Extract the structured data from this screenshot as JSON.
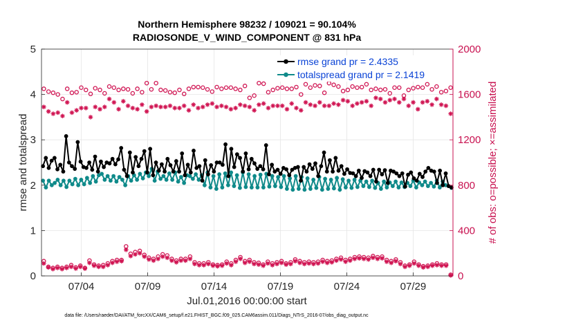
{
  "chart_data": {
    "type": "line",
    "title_line1": "Northern Hemisphere 98232 / 109021 = 90.104%",
    "title_line2": "RADIOSONDE_V_WIND_COMPONENT @ 831 hPa",
    "xlabel": "Jul.01,2016 00:00:00 start",
    "ylabel_left": "rmse and totalspread",
    "ylabel_right": "# of obs: o=possible; ×=assimilated",
    "footnote": "data file: /Users/raeder/DAI/ATM_forcXX/CAM6_setup/f.e21.FHIST_BGC.f09_025.CAM6assim.011/Diags_NTrS_2016-07/obs_diag_output.nc",
    "x_range_days": [
      1.0,
      32.0
    ],
    "x_ticks": [
      {
        "day": 4,
        "label": "07/04"
      },
      {
        "day": 9,
        "label": "07/09"
      },
      {
        "day": 14,
        "label": "07/14"
      },
      {
        "day": 19,
        "label": "07/19"
      },
      {
        "day": 24,
        "label": "07/24"
      },
      {
        "day": 29,
        "label": "07/29"
      }
    ],
    "ylim_left": [
      0,
      5
    ],
    "yticks_left": [
      "0",
      "1",
      "2",
      "3",
      "4",
      "5"
    ],
    "ylim_right": [
      0,
      2000
    ],
    "yticks_right": [
      "0",
      "400",
      "800",
      "1200",
      "1600",
      "2000"
    ],
    "legend": {
      "position": "top-right",
      "entries": [
        "rmse grand pr = 2.4335",
        "totalspread grand pr = 2.1419"
      ]
    },
    "colors": {
      "rmse": "#000000",
      "spread": "#0f8a8a",
      "obs": "#d01452"
    },
    "series": [
      {
        "name": "rmse",
        "values": [
          2.42,
          2.6,
          2.38,
          2.54,
          2.6,
          2.35,
          2.45,
          2.3,
          3.08,
          2.5,
          2.42,
          2.36,
          2.95,
          2.52,
          2.4,
          2.38,
          2.5,
          2.34,
          2.63,
          2.3,
          2.52,
          2.4,
          2.5,
          2.48,
          2.58,
          2.46,
          2.57,
          2.82,
          2.34,
          2.2,
          2.72,
          2.28,
          2.62,
          2.42,
          2.58,
          2.75,
          2.28,
          2.8,
          2.22,
          2.5,
          2.32,
          2.46,
          2.3,
          2.58,
          2.44,
          2.3,
          2.53,
          2.3,
          2.7,
          2.22,
          2.45,
          2.28,
          2.76,
          2.38,
          2.42,
          2.1,
          2.55,
          2.24,
          2.44,
          2.3,
          2.5,
          2.5,
          2.45,
          2.9,
          2.2,
          2.8,
          2.4,
          2.68,
          2.6,
          2.3,
          2.7,
          2.35,
          2.58,
          2.48,
          2.36,
          2.42,
          2.35,
          2.88,
          2.24,
          2.45,
          2.3,
          2.34,
          2.25,
          2.38,
          2.35,
          2.22,
          2.34,
          2.38,
          2.4,
          2.1,
          2.4,
          2.3,
          2.46,
          2.36,
          2.48,
          2.2,
          2.42,
          2.72,
          2.3,
          2.55,
          2.3,
          2.6,
          2.32,
          2.42,
          2.25,
          2.35,
          2.27,
          2.26,
          2.2,
          2.32,
          2.16,
          2.31,
          2.28,
          2.2,
          2.34,
          2.08,
          2.34,
          2.24,
          2.33,
          2.05,
          2.32,
          2.3,
          2.26,
          2.2,
          2.26,
          1.97,
          2.23,
          2.28,
          2.15,
          2.1,
          2.25,
          2.18,
          2.3,
          2.38,
          2.32,
          2.3,
          2.05,
          2.32,
          2.0,
          2.26,
          1.98,
          1.95
        ]
      },
      {
        "name": "totalspread",
        "values": [
          2.1,
          1.95,
          2.1,
          2.0,
          2.05,
          2.12,
          2.0,
          2.1,
          1.96,
          2.1,
          2.02,
          2.14,
          2.0,
          2.12,
          2.02,
          2.16,
          2.05,
          2.2,
          2.08,
          2.22,
          2.25,
          2.12,
          2.2,
          2.1,
          2.2,
          2.08,
          2.18,
          2.12,
          2.0,
          2.2,
          2.1,
          2.22,
          2.12,
          2.25,
          2.15,
          2.28,
          2.2,
          2.36,
          2.1,
          2.3,
          2.14,
          2.2,
          2.12,
          2.26,
          2.12,
          2.28,
          2.08,
          2.18,
          2.05,
          2.22,
          2.2,
          2.14,
          2.24,
          2.12,
          2.22,
          2.0,
          2.28,
          1.95,
          2.2,
          1.92,
          2.24,
          1.95,
          2.26,
          2.0,
          2.28,
          1.98,
          2.22,
          1.94,
          2.28,
          1.96,
          2.24,
          1.95,
          2.2,
          1.95,
          2.23,
          1.95,
          2.25,
          1.97,
          2.2,
          1.98,
          2.18,
          1.96,
          2.2,
          1.92,
          2.15,
          1.9,
          2.2,
          1.92,
          2.18,
          1.9,
          2.15,
          1.92,
          2.12,
          1.94,
          2.18,
          1.9,
          2.14,
          1.92,
          2.12,
          1.93,
          2.16,
          1.9,
          2.13,
          1.95,
          2.1,
          1.94,
          2.12,
          1.96,
          2.1,
          1.98,
          2.08,
          1.96,
          2.1,
          1.94,
          2.05,
          1.92,
          2.08,
          1.95,
          2.06,
          1.98,
          2.08,
          1.95,
          2.06,
          1.96,
          2.05,
          1.98,
          2.1,
          1.95,
          2.06,
          2.0,
          2.08,
          1.98,
          2.05,
          1.97,
          2.1,
          1.95,
          2.08,
          2.0,
          1.98,
          1.94
        ]
      },
      {
        "name": "obs_possible",
        "values": [
          1650,
          1625,
          1615,
          1600,
          1560,
          1650,
          1615,
          1620,
          1660,
          1640,
          1605,
          1655,
          1640,
          1610,
          1670,
          1660,
          1640,
          1650,
          1645,
          1610,
          1650,
          1620,
          1700,
          1645,
          1700,
          1640,
          1635,
          1620,
          1615,
          1640,
          1605,
          1650,
          1665,
          1665,
          1660,
          1645,
          1625,
          1665,
          1650,
          1660,
          1660,
          1650,
          1640,
          1675,
          1570,
          1590,
          1700,
          1695,
          1620,
          1640,
          1655,
          1660,
          1650,
          1650,
          1665,
          1600,
          1690,
          1660,
          1680,
          1675,
          1615,
          1700,
          1685,
          1670,
          1630,
          1640,
          1670,
          1660,
          1665,
          1690,
          1640,
          1650,
          1640,
          1645,
          1610,
          1660,
          1660,
          1590,
          1640,
          1655,
          1665,
          1660,
          1690,
          1645,
          1670,
          1620,
          1630,
          1660
        ]
      },
      {
        "name": "obs_assimilated",
        "values": [
          1490,
          1450,
          1430,
          1440,
          1410,
          1530,
          1440,
          1460,
          1480,
          1480,
          1400,
          1490,
          1470,
          1490,
          1560,
          1530,
          1470,
          1540,
          1500,
          1480,
          1470,
          1510,
          1450,
          1490,
          1500,
          1490,
          1490,
          1500,
          1480,
          1480,
          1500,
          1460,
          1510,
          1480,
          1490,
          1510,
          1520,
          1490,
          1500,
          1490,
          1470,
          1480,
          1510,
          1500,
          1490,
          1460,
          1510,
          1520,
          1480,
          1500,
          1500,
          1500,
          1470,
          1520,
          1480,
          1460,
          1530,
          1510,
          1500,
          1530,
          1500,
          1500,
          1520,
          1510,
          1550,
          1540,
          1500,
          1520,
          1530,
          1540,
          1500,
          1570,
          1560,
          1530,
          1550,
          1560,
          1530,
          1560,
          1500,
          1530,
          1470,
          1530,
          1540,
          1510,
          1560,
          1510,
          1500,
          1430
        ]
      },
      {
        "name": "obs_possible_low",
        "values": [
          130,
          80,
          70,
          80,
          70,
          80,
          95,
          75,
          90,
          70,
          135,
          100,
          90,
          95,
          110,
          130,
          140,
          140,
          260,
          195,
          210,
          220,
          185,
          160,
          150,
          170,
          190,
          180,
          150,
          135,
          150,
          150,
          170,
          120,
          110,
          110,
          120,
          100,
          95,
          100,
          125,
          110,
          140,
          165,
          130,
          140,
          120,
          115,
          100,
          125,
          110,
          120,
          130,
          110,
          120,
          145,
          130,
          120,
          125,
          120,
          125,
          140,
          130,
          135,
          150,
          160,
          140,
          150,
          165,
          170,
          165,
          160,
          175,
          165,
          170,
          140,
          130,
          145,
          120,
          90,
          100,
          125,
          100,
          85,
          90,
          100,
          110,
          100,
          100,
          10
        ]
      },
      {
        "name": "obs_assimilated_low",
        "values": [
          110,
          75,
          60,
          70,
          60,
          70,
          80,
          65,
          80,
          65,
          115,
          90,
          80,
          80,
          95,
          115,
          125,
          130,
          230,
          175,
          190,
          200,
          170,
          145,
          135,
          150,
          170,
          160,
          135,
          120,
          135,
          135,
          150,
          105,
          95,
          95,
          105,
          90,
          85,
          90,
          110,
          95,
          125,
          150,
          115,
          125,
          105,
          100,
          90,
          110,
          95,
          105,
          115,
          100,
          105,
          130,
          115,
          105,
          110,
          105,
          110,
          125,
          115,
          120,
          135,
          145,
          125,
          135,
          150,
          155,
          150,
          145,
          160,
          150,
          155,
          125,
          115,
          130,
          105,
          80,
          90,
          110,
          90,
          75,
          80,
          90,
          95,
          90,
          90,
          5
        ]
      }
    ]
  }
}
